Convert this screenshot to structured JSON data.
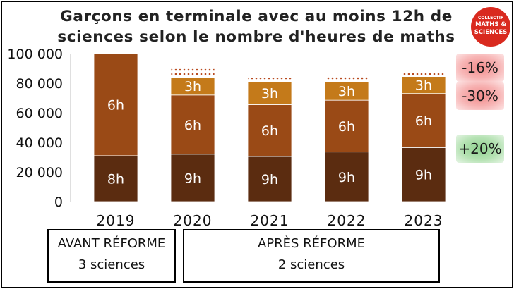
{
  "title_line1": "Garçons en terminale avec au moins 12h de",
  "title_line2": "sciences selon le nombre d'heures de maths",
  "logo_text": [
    "COLLECTIF",
    "MATHS &",
    "SCIENCES"
  ],
  "colors": {
    "8h": "#5b2c10",
    "9h": "#5b2c10",
    "6h": "#9a4a16",
    "3h": "#c47a1a",
    "dotted": "#b84a1f"
  },
  "chart_data": {
    "type": "bar",
    "stacked": true,
    "categories": [
      "2019",
      "2020",
      "2021",
      "2022",
      "2023"
    ],
    "ylim": [
      0,
      100000
    ],
    "yticks": [
      "0",
      "20 000",
      "40 000",
      "60 000",
      "80 000",
      "100 000"
    ],
    "ytick_values": [
      0,
      20000,
      40000,
      60000,
      80000,
      100000
    ],
    "segments": [
      {
        "labels": [
          "8h",
          "9h",
          "9h",
          "9h",
          "9h"
        ],
        "values": [
          31000,
          32000,
          30500,
          33500,
          36500
        ]
      },
      {
        "labels": [
          "6h",
          "6h",
          "6h",
          "6h",
          "6h"
        ],
        "values": [
          69000,
          40000,
          35000,
          35000,
          36500
        ]
      },
      {
        "labels": [
          "",
          "3h",
          "3h",
          "3h",
          "3h"
        ],
        "values": [
          0,
          12000,
          15500,
          12500,
          11500
        ]
      },
      {
        "labels": [
          "",
          "",
          "",
          "",
          ""
        ],
        "values": [
          0,
          6000,
          3000,
          4000,
          3500
        ],
        "pattern": "dotted"
      }
    ],
    "annotations": [
      {
        "text": "-16%",
        "style": "negative"
      },
      {
        "text": "-30%",
        "style": "negative"
      },
      {
        "text": "+20%",
        "style": "positive"
      }
    ]
  },
  "periods": [
    {
      "line1": "AVANT RÉFORME",
      "line2": "3 sciences"
    },
    {
      "line1": "APRÈS RÉFORME",
      "line2": "2 sciences"
    }
  ]
}
